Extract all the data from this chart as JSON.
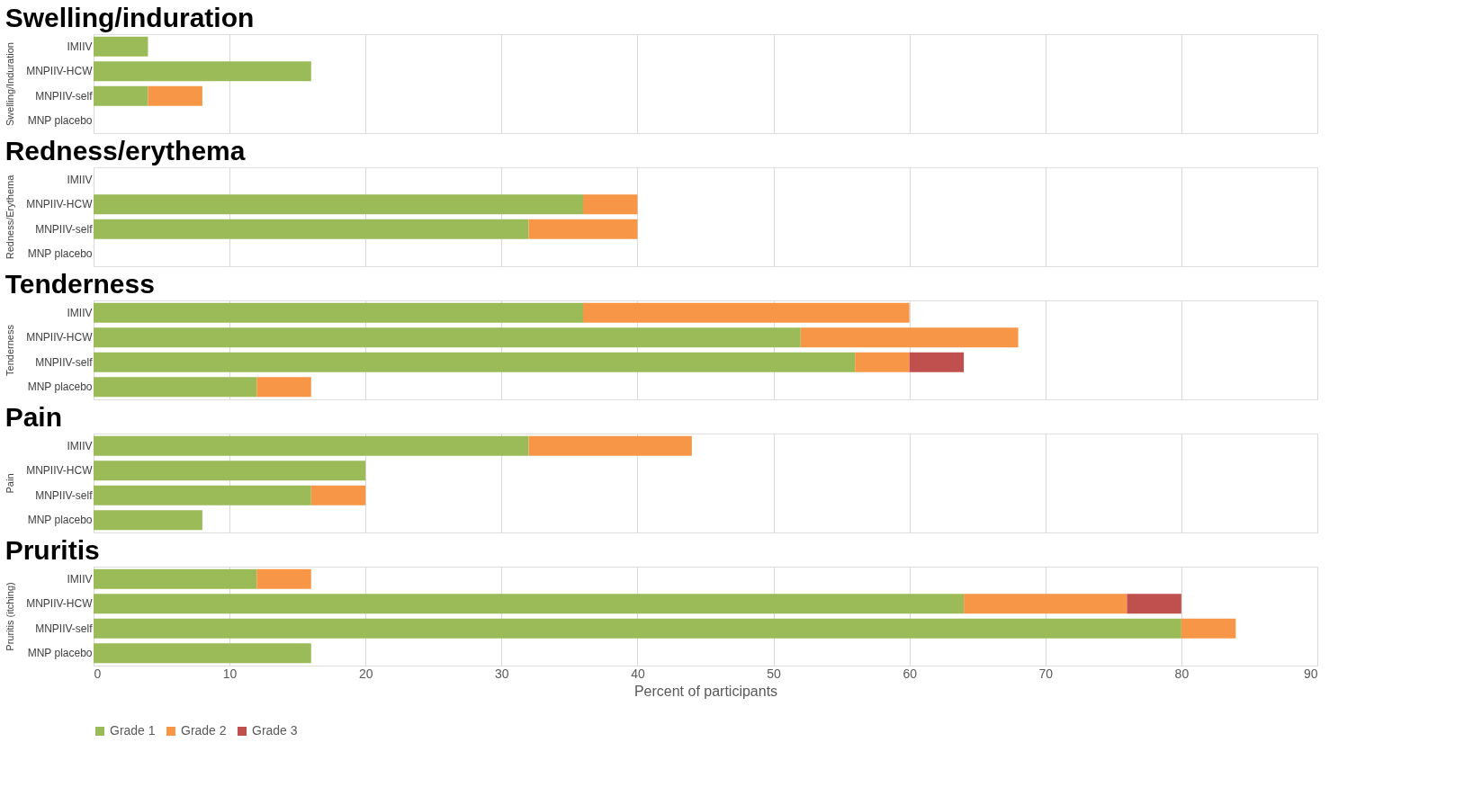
{
  "chart_data": [
    {
      "type": "bar",
      "orientation": "horizontal",
      "stacked": true,
      "title": "Swelling/induration",
      "ylabel": "Swelling/Induration",
      "categories": [
        "IMIIV",
        "MNPIIV-HCW",
        "MNPIIV-self",
        "MNP placebo"
      ],
      "series": [
        {
          "color": "#9bbb59",
          "values": [
            4,
            16,
            4,
            null
          ]
        },
        {
          "color": "#f79646",
          "values": [
            null,
            null,
            4,
            null
          ]
        }
      ],
      "xlim": [
        0,
        90
      ],
      "xticks": [
        0,
        10,
        20,
        30,
        40,
        50,
        60,
        70,
        80,
        90
      ],
      "grid": "x",
      "tick_labels": "y"
    },
    {
      "type": "bar",
      "orientation": "horizontal",
      "stacked": true,
      "title": "Redness/erythema",
      "ylabel": "Redness/Erythema",
      "categories": [
        "IMIIV",
        "MNPIIV-HCW",
        "MNPIIV-self",
        "MNP placebo"
      ],
      "series": [
        {
          "color": "#9bbb59",
          "values": [
            null,
            36,
            32,
            null
          ]
        },
        {
          "color": "#f79646",
          "values": [
            null,
            4,
            8,
            null
          ]
        }
      ],
      "xlim": [
        0,
        90
      ],
      "xticks": [
        0,
        10,
        20,
        30,
        40,
        50,
        60,
        70,
        80,
        90
      ],
      "grid": "x",
      "tick_labels": "y"
    },
    {
      "type": "bar",
      "orientation": "horizontal",
      "stacked": true,
      "title": "Tenderness",
      "ylabel": "Tenderness",
      "categories": [
        "IMIIV",
        "MNPIIV-HCW",
        "MNPIIV-self",
        "MNP placebo"
      ],
      "series": [
        {
          "color": "#9bbb59",
          "values": [
            36,
            52,
            56,
            12
          ]
        },
        {
          "color": "#f79646",
          "values": [
            24,
            16,
            4,
            4
          ]
        },
        {
          "color": "#c0504d",
          "values": [
            null,
            null,
            4,
            null
          ]
        }
      ],
      "xlim": [
        0,
        90
      ],
      "xticks": [
        0,
        10,
        20,
        30,
        40,
        50,
        60,
        70,
        80,
        90
      ],
      "grid": "x",
      "tick_labels": "y"
    },
    {
      "type": "bar",
      "orientation": "horizontal",
      "stacked": true,
      "title": "Pain",
      "ylabel": "Pain",
      "categories": [
        "IMIIV",
        "MNPIIV-HCW",
        "MNPIIV-self",
        "MNP placebo"
      ],
      "series": [
        {
          "color": "#9bbb59",
          "values": [
            32,
            20,
            16,
            8
          ]
        },
        {
          "color": "#f79646",
          "values": [
            12,
            null,
            4,
            null
          ]
        }
      ],
      "xlim": [
        0,
        90
      ],
      "xticks": [
        0,
        10,
        20,
        30,
        40,
        50,
        60,
        70,
        80,
        90
      ],
      "grid": "x",
      "tick_labels": "y"
    },
    {
      "type": "bar",
      "orientation": "horizontal",
      "stacked": true,
      "title": "Pruritis",
      "ylabel": "Pruritis (itching)",
      "xlabel": "Percent of participants",
      "legend": "bottom",
      "categories": [
        "IMIIV",
        "MNPIIV-HCW",
        "MNPIIV-self",
        "MNP placebo"
      ],
      "series": [
        {
          "name": "Grade 1",
          "color": "#9bbb59",
          "values": [
            12,
            64,
            80,
            16
          ]
        },
        {
          "name": "Grade 2",
          "color": "#f79646",
          "values": [
            4,
            12,
            4,
            null
          ]
        },
        {
          "name": "Grade 3",
          "color": "#c0504d",
          "values": [
            null,
            4,
            null,
            null
          ]
        }
      ],
      "xlim": [
        0,
        90
      ],
      "xticks": [
        0,
        10,
        20,
        30,
        40,
        50,
        60,
        70,
        80,
        90
      ],
      "grid": "x"
    }
  ]
}
